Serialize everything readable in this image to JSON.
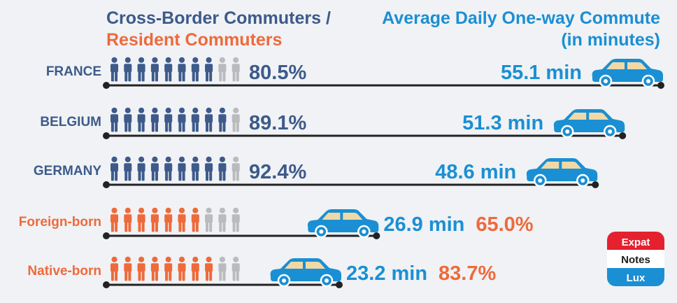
{
  "colors": {
    "blue_dark": "#3d5a8a",
    "blue_light": "#1b8fd3",
    "orange": "#ee6a3b",
    "gray": "#b9bbbe",
    "line": "#222222",
    "background": "#f0f2f5"
  },
  "headers": {
    "left_line1": "Cross-Border Commuters /",
    "left_line2": "Resident Commuters",
    "right_line1": "Average Daily One-way Commute",
    "right_line2": "(in minutes)"
  },
  "logo": {
    "line1": "Expat",
    "line2": "Notes",
    "line3": "Lux"
  },
  "icons": {
    "person": "person-icon",
    "car": "car-icon"
  },
  "chart_data": {
    "type": "pictograph-bar",
    "title": "Cross-Border Commuters / Resident Commuters",
    "title_right": "Average Daily One-way Commute (in minutes)",
    "categories": [
      "FRANCE",
      "BELGIUM",
      "GERMANY",
      "Foreign-born",
      "Native-born"
    ],
    "series": [
      {
        "name": "Cross-Border Commuters / Resident Commuters",
        "values": [
          80.5,
          89.1,
          92.4,
          65.0,
          83.7
        ],
        "labels": [
          "80.5%",
          "89.1%",
          "92.4%",
          "65.0%",
          "83.7%"
        ]
      },
      {
        "name": "Average Daily One-way Commute",
        "values": [
          55.1,
          51.3,
          48.6,
          26.9,
          23.2
        ],
        "labels": [
          "55.1 min",
          "51.3 min",
          "48.6 min",
          "26.9 min",
          "23.2 min"
        ]
      }
    ],
    "category_groups": [
      "cross-border",
      "cross-border",
      "cross-border",
      "resident",
      "resident"
    ],
    "icons_per_row": 10,
    "commute_axis_max": 55.1
  }
}
